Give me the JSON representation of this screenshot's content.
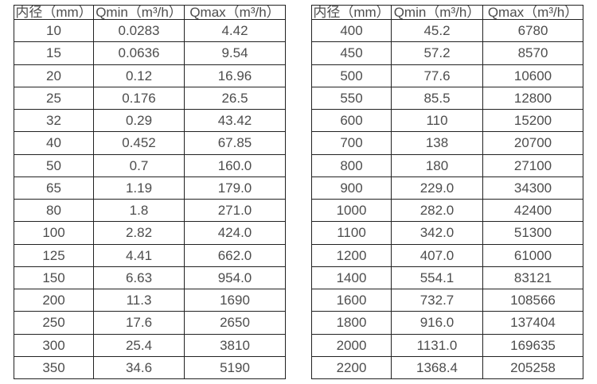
{
  "chart_data": {
    "type": "table",
    "description_colors": {
      "text": "#4d4d4d",
      "border": "#222222",
      "background": "#ffffff"
    },
    "tables": [
      {
        "headers": [
          "内径（mm）",
          "Qmin（m³/h）",
          "Qmax（m³/h）"
        ],
        "rows": [
          [
            "10",
            "0.0283",
            "4.42"
          ],
          [
            "15",
            "0.0636",
            "9.54"
          ],
          [
            "20",
            "0.12",
            "16.96"
          ],
          [
            "25",
            "0.176",
            "26.5"
          ],
          [
            "32",
            "0.29",
            "43.42"
          ],
          [
            "40",
            "0.452",
            "67.85"
          ],
          [
            "50",
            "0.7",
            "160.0"
          ],
          [
            "65",
            "1.19",
            "179.0"
          ],
          [
            "80",
            "1.8",
            "271.0"
          ],
          [
            "100",
            "2.82",
            "424.0"
          ],
          [
            "125",
            "4.41",
            "662.0"
          ],
          [
            "150",
            "6.63",
            "954.0"
          ],
          [
            "200",
            "11.3",
            "1690"
          ],
          [
            "250",
            "17.6",
            "2650"
          ],
          [
            "300",
            "25.4",
            "3810"
          ],
          [
            "350",
            "34.6",
            "5190"
          ]
        ]
      },
      {
        "headers": [
          "内径（mm）",
          "Qmin（m³/h）",
          "Qmax（m³/h）"
        ],
        "rows": [
          [
            "400",
            "45.2",
            "6780"
          ],
          [
            "450",
            "57.2",
            "8570"
          ],
          [
            "500",
            "77.6",
            "10600"
          ],
          [
            "550",
            "85.5",
            "12800"
          ],
          [
            "600",
            "110",
            "15200"
          ],
          [
            "700",
            "138",
            "20700"
          ],
          [
            "800",
            "180",
            "27100"
          ],
          [
            "900",
            "229.0",
            "34300"
          ],
          [
            "1000",
            "282.0",
            "42400"
          ],
          [
            "1100",
            "342.0",
            "51300"
          ],
          [
            "1200",
            "407.0",
            "61000"
          ],
          [
            "1400",
            "554.1",
            "83121"
          ],
          [
            "1600",
            "732.7",
            "108566"
          ],
          [
            "1800",
            "916.0",
            "137404"
          ],
          [
            "2000",
            "1131.0",
            "169635"
          ],
          [
            "2200",
            "1368.4",
            "205258"
          ]
        ]
      }
    ]
  }
}
